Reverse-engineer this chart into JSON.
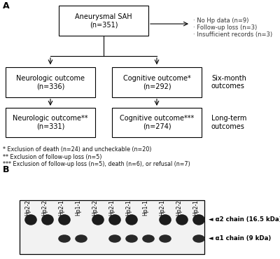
{
  "panel_A_label": "A",
  "panel_B_label": "B",
  "lane_labels": [
    "Hp2-2",
    "Hp2-2",
    "Hp2-1",
    "Hp1-1",
    "Hp2-2",
    "Hp2-1",
    "Hp2-1",
    "Hp1-1",
    "Hp2-1",
    "Hp2-2",
    "Hp2-1"
  ],
  "alpha2_label": "◄ α2 chain (16.5 kDa)",
  "alpha1_label": "◄ α1 chain (9 kDa)",
  "bg_color": "#ffffff"
}
